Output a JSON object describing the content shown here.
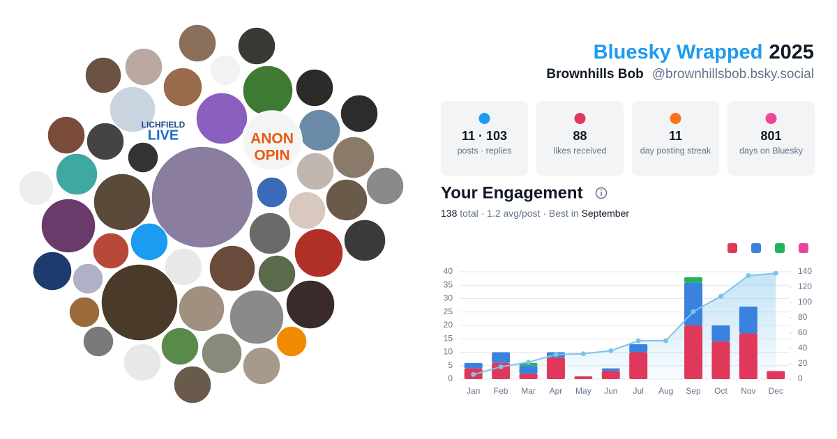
{
  "header": {
    "title_brand": "Bluesky Wrapped",
    "title_year": "2025",
    "display_name": "Brownhills Bob",
    "handle": "@brownhillsbob.bsky.social"
  },
  "collage": {
    "labels": [
      "LICHFIELD",
      "LIVE",
      "ANON",
      "OPIN"
    ]
  },
  "stats": [
    {
      "value": "11 · 103",
      "label": "posts · replies"
    },
    {
      "value": "88",
      "label": "likes received"
    },
    {
      "value": "11",
      "label": "day posting streak"
    },
    {
      "value": "801",
      "label": "days on Bluesky"
    }
  ],
  "engagement": {
    "title": "Your Engagement",
    "summary": [
      "138",
      "total · 1.2 avg/post · Best in",
      "September"
    ]
  },
  "chart_data": {
    "type": "stacked-bar-line",
    "categories": [
      "Jan",
      "Feb",
      "Mar",
      "Apr",
      "May",
      "Jun",
      "Jul",
      "Aug",
      "Sep",
      "Oct",
      "Nov",
      "Dec"
    ],
    "series": [
      {
        "color": "#e0385a",
        "values": [
          4,
          6,
          2,
          8,
          1,
          3,
          10,
          0,
          20,
          14,
          17,
          3
        ]
      },
      {
        "color": "#3b82e0",
        "values": [
          2,
          4,
          3,
          2,
          0,
          1,
          3,
          0,
          16,
          6,
          10,
          0
        ]
      },
      {
        "color": "#22b45a",
        "values": [
          0,
          0,
          1,
          0,
          0,
          0,
          0,
          0,
          2,
          0,
          0,
          0
        ]
      },
      {
        "color": "#e8469a",
        "values": [
          0,
          0,
          0,
          0,
          0,
          0,
          0,
          0,
          0,
          0,
          0,
          0
        ]
      },
      {
        "type": "line",
        "axis": "y2",
        "color": "#7cc3ea",
        "values": [
          6,
          16,
          22,
          32,
          33,
          37,
          50,
          50,
          88,
          108,
          135,
          138
        ]
      }
    ],
    "ylim": [
      0,
      40
    ],
    "yticks": [
      0,
      5,
      10,
      15,
      20,
      25,
      30,
      35,
      40
    ],
    "y2lim": [
      0,
      140
    ],
    "y2ticks": [
      0,
      20,
      40,
      60,
      80,
      100,
      120,
      140
    ],
    "grid": true
  }
}
